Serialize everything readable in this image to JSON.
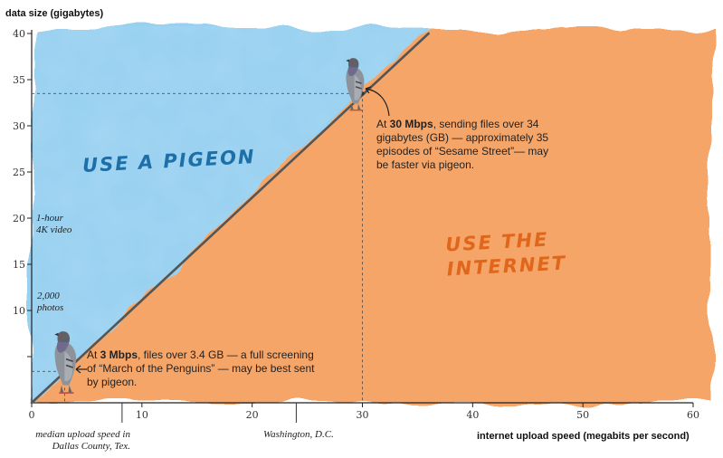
{
  "chart_data": {
    "type": "line",
    "ylabel": "data size (gigabytes)",
    "xlabel": "internet upload speed (megabits per second)",
    "xlim": [
      0,
      60
    ],
    "ylim": [
      0,
      40
    ],
    "x_ticks": [
      0,
      10,
      20,
      30,
      40,
      50,
      60
    ],
    "y_ticks": [
      5,
      10,
      15,
      20,
      25,
      30,
      35,
      40
    ],
    "x_tick_labels": [
      "0",
      "10",
      "20",
      "30",
      "40",
      "50",
      "60"
    ],
    "y_tick_labels": [
      "",
      "10",
      "15",
      "20",
      "25",
      "30",
      "35",
      "40"
    ],
    "line": {
      "x": [
        0,
        36
      ],
      "y": [
        0,
        40
      ]
    },
    "regions": {
      "above": {
        "label": "USE A PIGEON",
        "color": "#8ccbef"
      },
      "below": {
        "label": "USE THE INTERNET",
        "color": "#f5a160",
        "lines": [
          "USE THE",
          "INTERNET"
        ]
      }
    },
    "reference_points": [
      {
        "x": 30,
        "y": 33.5
      },
      {
        "x": 3,
        "y": 3.4
      }
    ],
    "x_markers": [
      {
        "x": 8.2,
        "label": "median upload speed in Dallas County, Tex.",
        "lines": [
          "median upload speed in",
          "Dallas County, Tex."
        ]
      },
      {
        "x": 24,
        "label": "Washington, D.C."
      }
    ],
    "y_markers": [
      {
        "y": 20,
        "label": "1-hour 4K video",
        "lines": [
          "1-hour",
          "4K video"
        ]
      },
      {
        "y": 10,
        "label": "2,000 photos",
        "lines": [
          "2,000",
          "photos"
        ]
      }
    ],
    "annotations": [
      {
        "pre": "At ",
        "bold": "30 Mbps",
        "post": ", sending files over 34 gigabytes (GB) — approximately 35 episodes of “Sesame Street”— may be faster via pigeon."
      },
      {
        "pre": "At ",
        "bold": "3 Mbps",
        "post": ", files over 3.4 GB — a full screening of “March of the Penguins” — may be best sent by pigeon."
      }
    ]
  },
  "colors": {
    "pigeon_region": "#8ccbef",
    "internet_region": "#f5a160",
    "diagonal": "#555555",
    "pigeon_label": "#1c6fa8",
    "internet_label": "#e0661b"
  },
  "icons": [
    "pigeon-icon",
    "pigeon-icon"
  ]
}
